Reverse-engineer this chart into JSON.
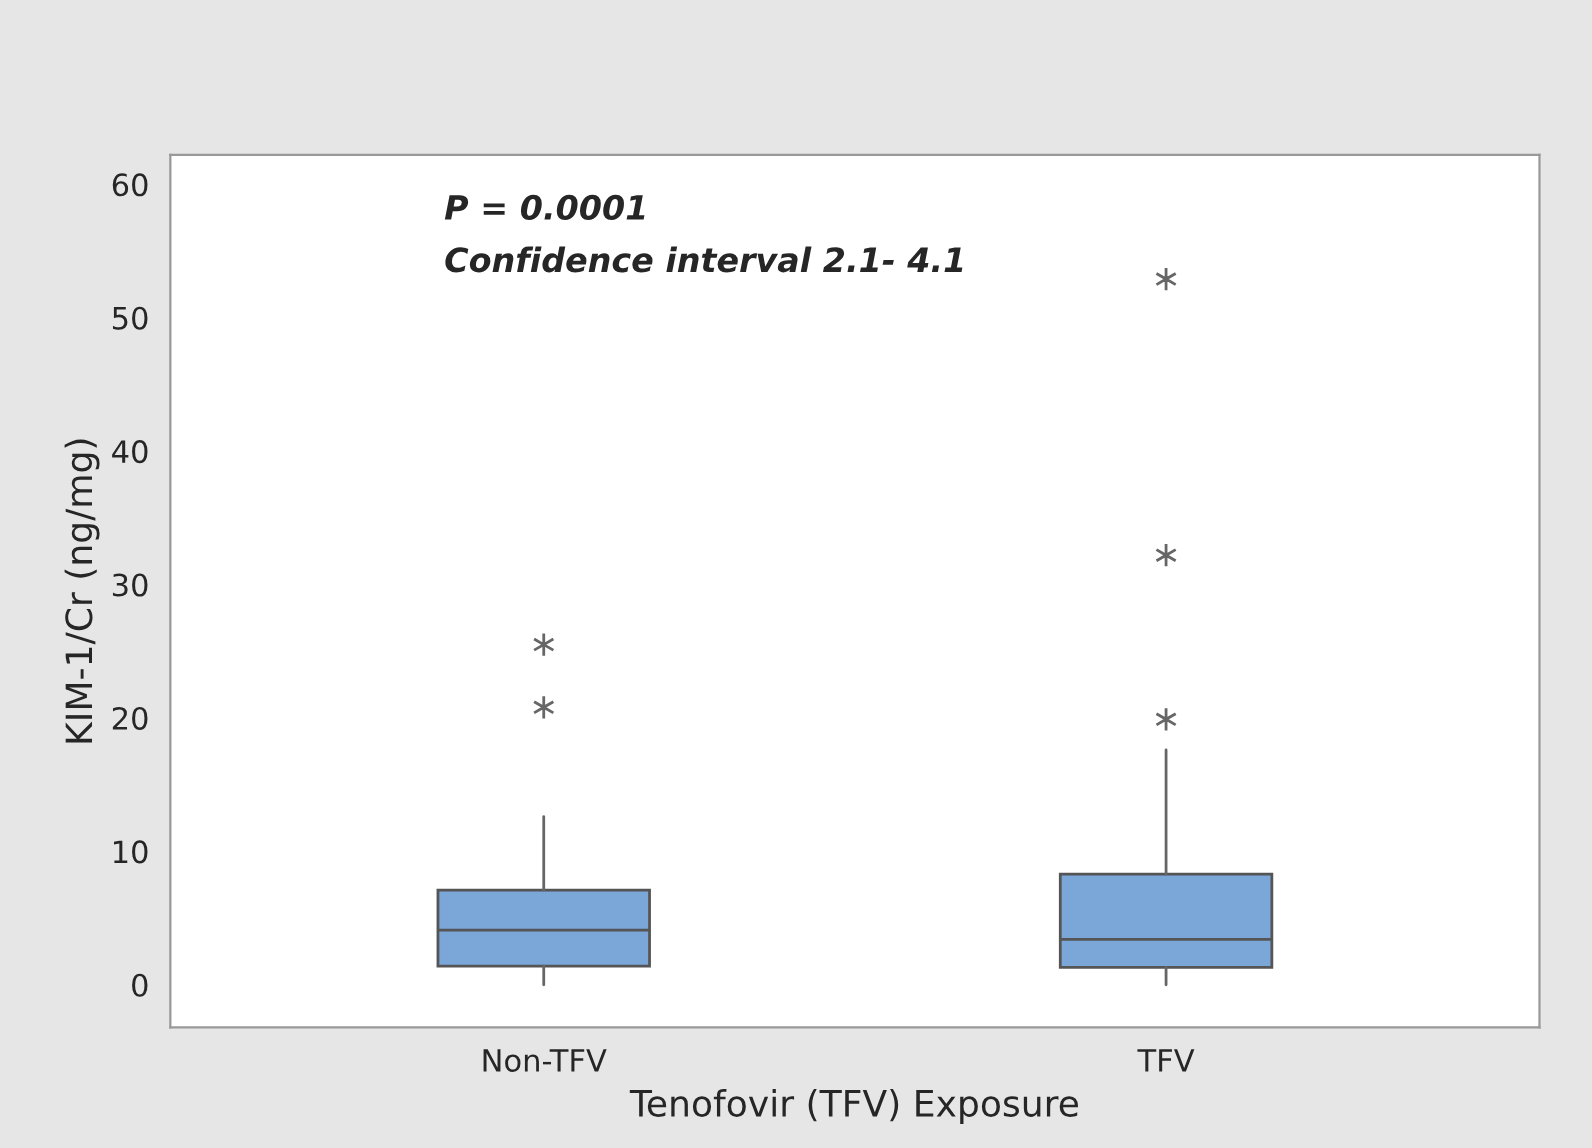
{
  "chart_data": {
    "type": "box",
    "xlabel": "Tenofovir (TFV) Exposure",
    "ylabel": "KIM-1/Cr (ng/mg)",
    "categories": [
      "Non-TFV",
      "TFV"
    ],
    "color": "#7aa6d8",
    "boxes": [
      {
        "low": 0,
        "q1": 1.4,
        "median": 4.1,
        "q3": 7.1,
        "high": 12.6,
        "outliers": [
          20.8,
          25.5
        ]
      },
      {
        "low": 0,
        "q1": 1.3,
        "median": 3.4,
        "q3": 8.3,
        "high": 17.6,
        "outliers": [
          19.9,
          32.2,
          52.9
        ]
      }
    ],
    "ylim": [
      -3.2,
      62.2
    ],
    "yticks": [
      0,
      10,
      20,
      30,
      40,
      50,
      60
    ],
    "grid": false,
    "annotations": [
      "P = 0.0001",
      "Confidence interval 2.1- 4.1"
    ]
  }
}
